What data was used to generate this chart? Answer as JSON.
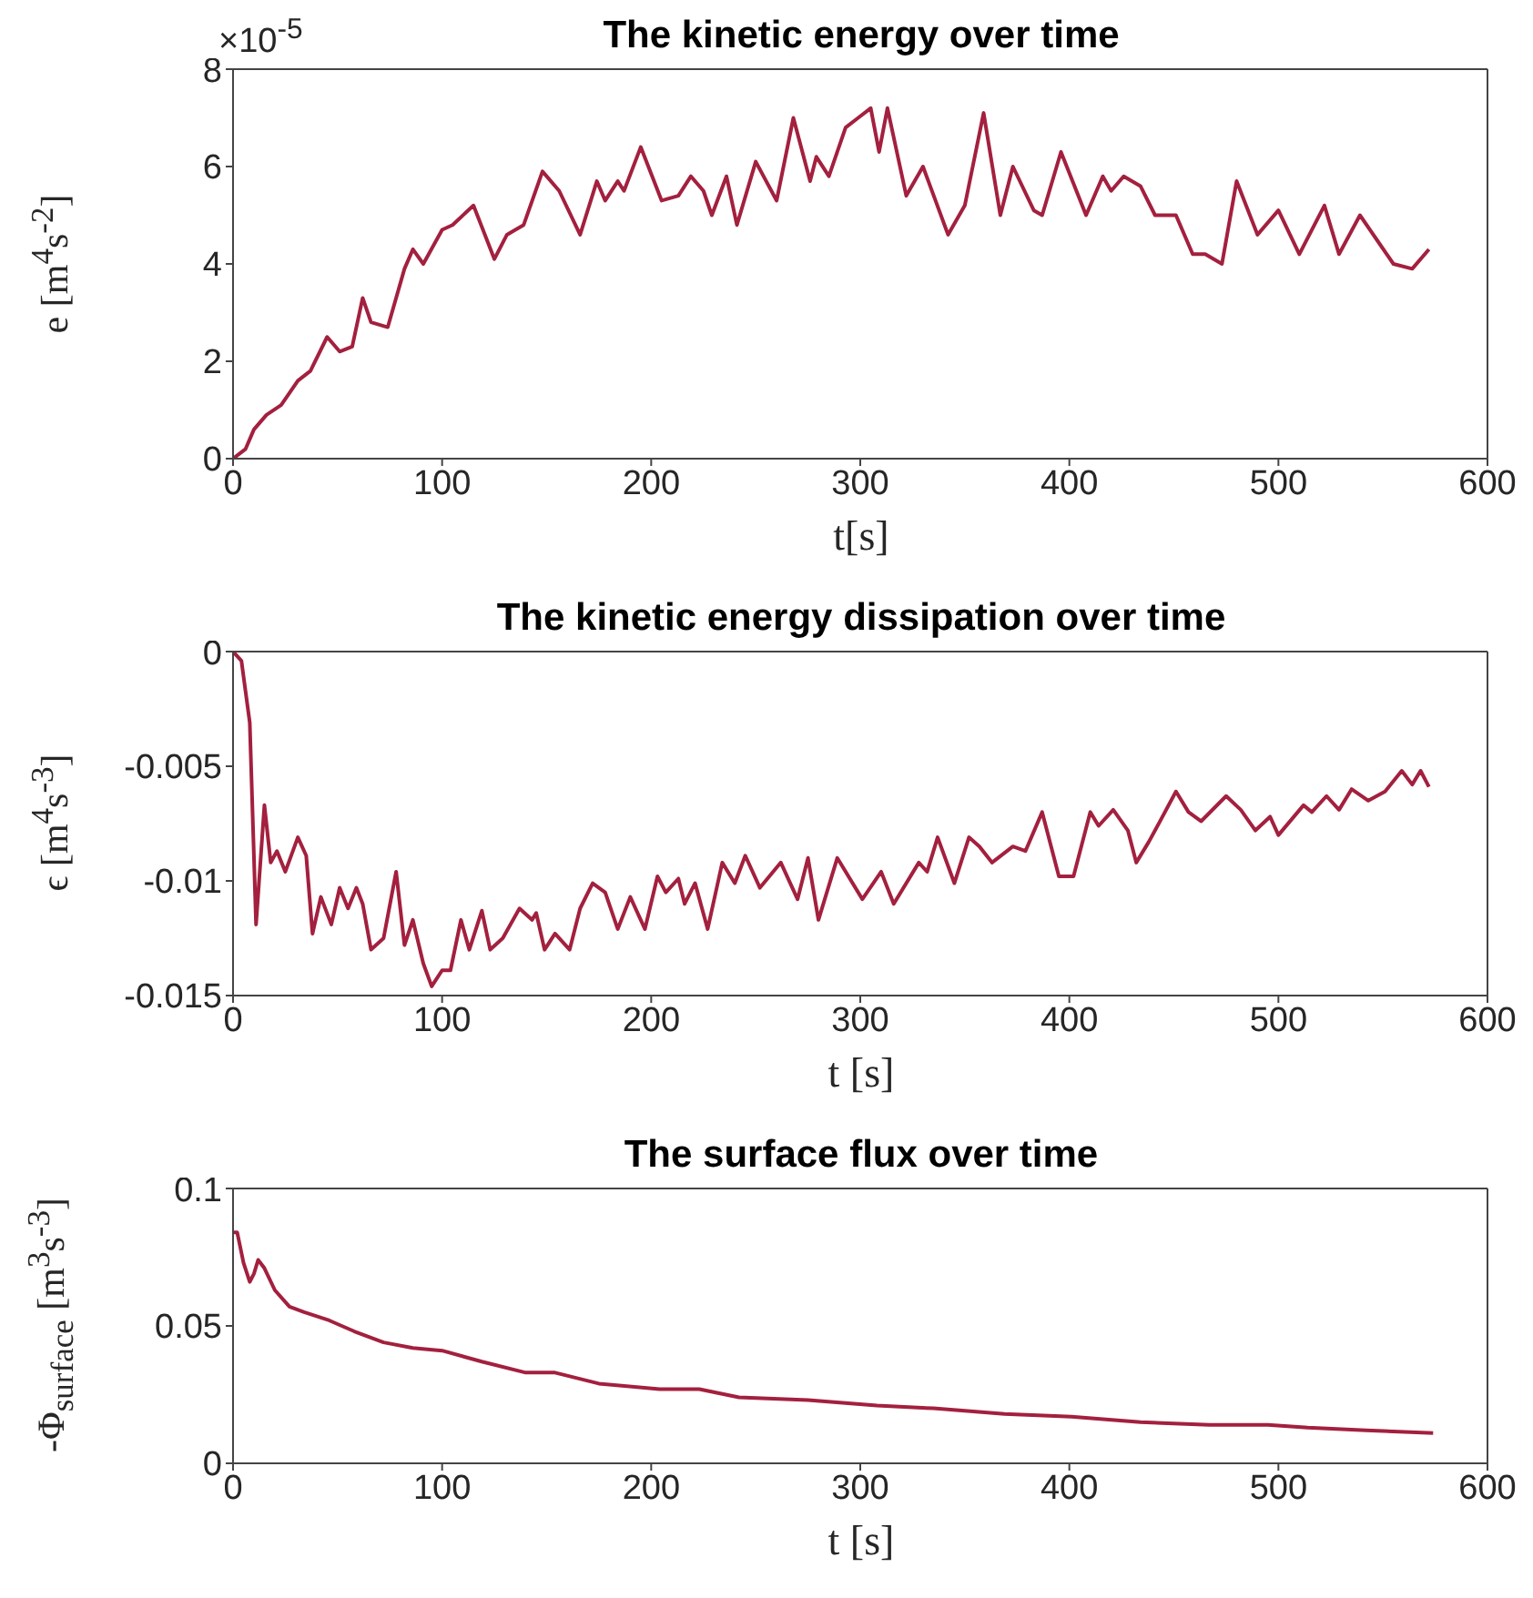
{
  "chart_data": [
    {
      "type": "line",
      "title": "The kinetic energy over time",
      "xlabel": "t[s]",
      "ylabel": "e [m$^{4}$s$^{-2}$]",
      "annotations": [
        "×10$^{-5}$"
      ],
      "marker": "none",
      "line_style": "solid",
      "xlim": [
        0,
        600
      ],
      "xticks": [
        0,
        100,
        200,
        300,
        400,
        500,
        600
      ],
      "ylim": [
        0,
        8
      ],
      "yticks": [
        0,
        2,
        4,
        6,
        8
      ],
      "series": [
        {
          "color": "#a3203e",
          "x": [
            0,
            6,
            10,
            16,
            23,
            31,
            37,
            45,
            51,
            57,
            62,
            66,
            74,
            82,
            86,
            91,
            100,
            105,
            115,
            125,
            131,
            139,
            148,
            156,
            166,
            174,
            178,
            184,
            187,
            195,
            205,
            213,
            219,
            225,
            229,
            236,
            241,
            250,
            260,
            268,
            276,
            279,
            285,
            293,
            299,
            305,
            309,
            313,
            322,
            330,
            342,
            350,
            359,
            367,
            373,
            383,
            387,
            396,
            408,
            416,
            420,
            426,
            434,
            441,
            451,
            459,
            465,
            473,
            480,
            490,
            500,
            510,
            522,
            529,
            539,
            547,
            555,
            564,
            572
          ],
          "values": [
            0,
            0.2,
            0.6,
            0.9,
            1.1,
            1.6,
            1.8,
            2.5,
            2.2,
            2.3,
            3.3,
            2.8,
            2.7,
            3.9,
            4.3,
            4.0,
            4.7,
            4.8,
            5.2,
            4.1,
            4.6,
            4.8,
            5.9,
            5.5,
            4.6,
            5.7,
            5.3,
            5.7,
            5.5,
            6.4,
            5.3,
            5.4,
            5.8,
            5.5,
            5.0,
            5.8,
            4.8,
            6.1,
            5.3,
            7.0,
            5.7,
            6.2,
            5.8,
            6.8,
            7.0,
            7.2,
            6.3,
            7.2,
            5.4,
            6.0,
            4.6,
            5.2,
            7.1,
            5.0,
            6.0,
            5.1,
            5.0,
            6.3,
            5.0,
            5.8,
            5.5,
            5.8,
            5.6,
            5.0,
            5.0,
            4.2,
            4.2,
            4.0,
            5.7,
            4.6,
            5.1,
            4.2,
            5.2,
            4.2,
            5.0,
            4.5,
            4.0,
            3.9,
            4.3
          ]
        }
      ]
    },
    {
      "type": "line",
      "title": "The kinetic energy dissipation over time",
      "xlabel": "t [s]",
      "ylabel": "ϵ [m$^{4}$s$^{-3}$]",
      "marker": "none",
      "line_style": "solid",
      "xlim": [
        0,
        600
      ],
      "xticks": [
        0,
        100,
        200,
        300,
        400,
        500,
        600
      ],
      "ylim": [
        -0.015,
        0
      ],
      "yticks": [
        -0.015,
        -0.01,
        -0.005,
        0
      ],
      "series": [
        {
          "color": "#a3203e",
          "x": [
            0,
            4,
            8,
            11,
            15,
            18,
            21,
            25,
            31,
            35,
            38,
            42,
            47,
            51,
            55,
            59,
            62,
            66,
            72,
            78,
            82,
            86,
            91,
            95,
            100,
            104,
            109,
            113,
            119,
            123,
            129,
            137,
            143,
            145,
            149,
            154,
            161,
            166,
            172,
            178,
            184,
            190,
            197,
            203,
            207,
            213,
            216,
            221,
            227,
            234,
            240,
            245,
            252,
            262,
            270,
            275,
            280,
            289,
            301,
            310,
            316,
            328,
            332,
            337,
            345,
            352,
            357,
            363,
            373,
            379,
            387,
            395,
            402,
            410,
            414,
            421,
            428,
            432,
            438,
            441,
            451,
            457,
            463,
            475,
            482,
            489,
            496,
            500,
            512,
            516,
            523,
            529,
            535,
            543,
            551,
            559,
            564,
            568,
            572
          ],
          "values": [
            0,
            -0.0004,
            -0.0031,
            -0.0119,
            -0.0067,
            -0.0092,
            -0.0087,
            -0.0096,
            -0.0081,
            -0.0089,
            -0.0123,
            -0.0107,
            -0.0119,
            -0.0103,
            -0.0112,
            -0.0103,
            -0.011,
            -0.013,
            -0.0125,
            -0.0096,
            -0.0128,
            -0.0117,
            -0.0136,
            -0.0146,
            -0.0139,
            -0.0139,
            -0.0117,
            -0.013,
            -0.0113,
            -0.013,
            -0.0125,
            -0.0112,
            -0.0117,
            -0.0114,
            -0.013,
            -0.0123,
            -0.013,
            -0.0112,
            -0.0101,
            -0.0105,
            -0.0121,
            -0.0107,
            -0.0121,
            -0.0098,
            -0.0105,
            -0.0099,
            -0.011,
            -0.0101,
            -0.0121,
            -0.0092,
            -0.0101,
            -0.0089,
            -0.0103,
            -0.0092,
            -0.0108,
            -0.009,
            -0.0117,
            -0.009,
            -0.0108,
            -0.0096,
            -0.011,
            -0.0092,
            -0.0096,
            -0.0081,
            -0.0101,
            -0.0081,
            -0.0085,
            -0.0092,
            -0.0085,
            -0.0087,
            -0.007,
            -0.0098,
            -0.0098,
            -0.007,
            -0.0076,
            -0.0069,
            -0.0078,
            -0.0092,
            -0.0083,
            -0.0078,
            -0.0061,
            -0.007,
            -0.0074,
            -0.0063,
            -0.0069,
            -0.0078,
            -0.0072,
            -0.008,
            -0.0067,
            -0.007,
            -0.0063,
            -0.0069,
            -0.006,
            -0.0065,
            -0.0061,
            -0.0052,
            -0.0058,
            -0.0052,
            -0.0059
          ]
        }
      ]
    },
    {
      "type": "line",
      "title": "The surface flux over time",
      "xlabel": "t [s]",
      "ylabel": "-Φ$_{surface}$ [m$^{3}$s$^{-3}$]",
      "marker": "none",
      "line_style": "solid",
      "xlim": [
        0,
        600
      ],
      "xticks": [
        0,
        100,
        200,
        300,
        400,
        500,
        600
      ],
      "ylim": [
        0,
        0.1
      ],
      "yticks": [
        0,
        0.05,
        0.1
      ],
      "series": [
        {
          "color": "#a3203e",
          "x": [
            0,
            2,
            5,
            8,
            10,
            12,
            15,
            20,
            27,
            34,
            46,
            58,
            72,
            86,
            100,
            119,
            140,
            154,
            175,
            204,
            223,
            242,
            275,
            308,
            335,
            369,
            401,
            434,
            467,
            495,
            514,
            542,
            574
          ],
          "values": [
            0.084,
            0.084,
            0.073,
            0.066,
            0.069,
            0.074,
            0.071,
            0.063,
            0.057,
            0.055,
            0.052,
            0.048,
            0.044,
            0.042,
            0.041,
            0.037,
            0.033,
            0.033,
            0.029,
            0.027,
            0.027,
            0.024,
            0.023,
            0.021,
            0.02,
            0.018,
            0.017,
            0.015,
            0.014,
            0.014,
            0.013,
            0.012,
            0.011
          ]
        }
      ]
    }
  ]
}
